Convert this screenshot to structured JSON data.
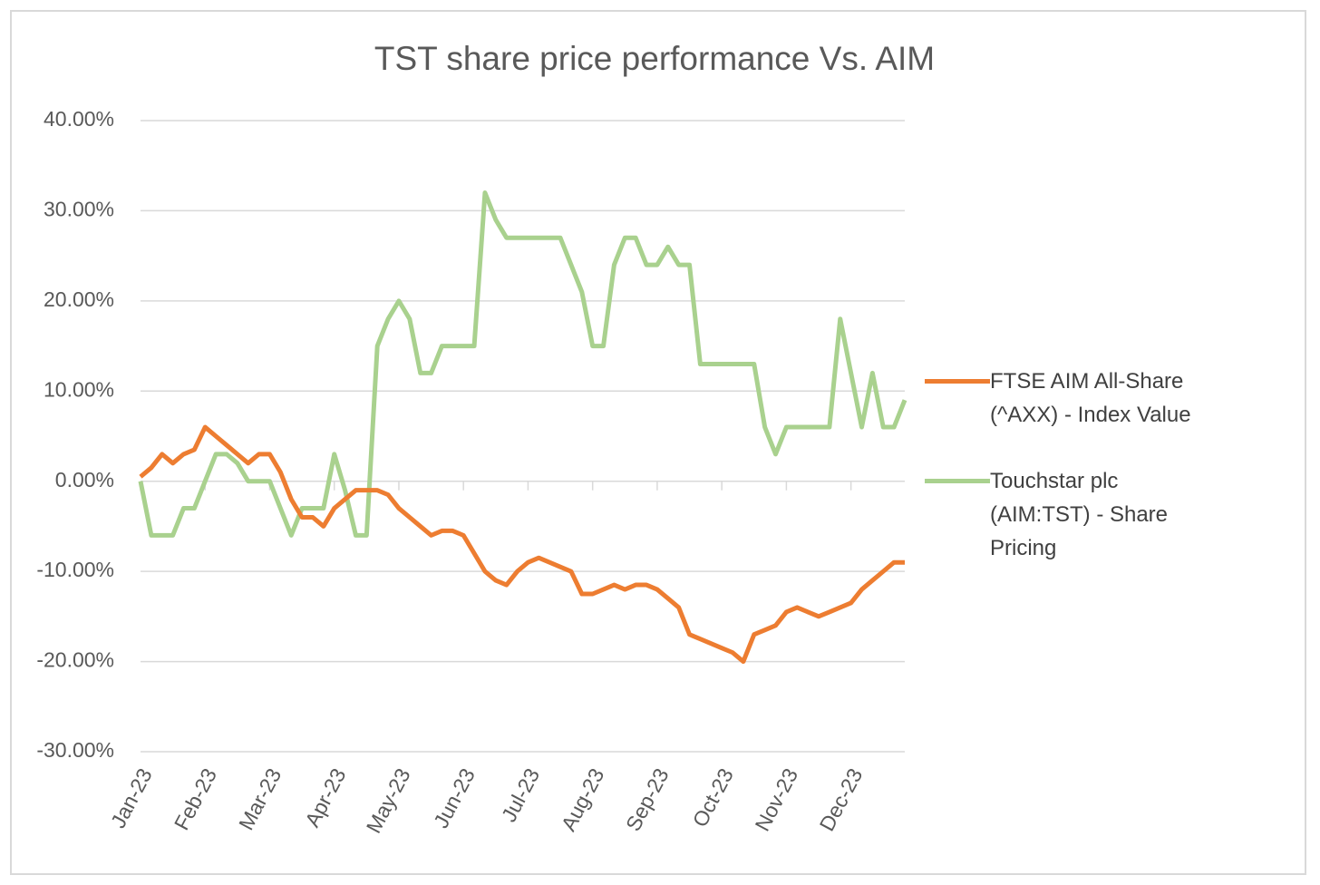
{
  "chart_data": {
    "type": "line",
    "title": "TST share price performance Vs. AIM",
    "categories": [
      "Jan-23",
      null,
      null,
      null,
      null,
      null,
      "Feb-23",
      null,
      null,
      null,
      null,
      null,
      "Mar-23",
      null,
      null,
      null,
      null,
      null,
      "Apr-23",
      null,
      null,
      null,
      null,
      null,
      "May-23",
      null,
      null,
      null,
      null,
      null,
      "Jun-23",
      null,
      null,
      null,
      null,
      null,
      "Jul-23",
      null,
      null,
      null,
      null,
      null,
      "Aug-23",
      null,
      null,
      null,
      null,
      null,
      "Sep-23",
      null,
      null,
      null,
      null,
      null,
      "Oct-23",
      null,
      null,
      null,
      null,
      null,
      "Nov-23",
      null,
      null,
      null,
      null,
      null,
      "Dec-23",
      null,
      null,
      null,
      null,
      null
    ],
    "series": [
      {
        "name": "FTSE AIM All-Share (^AXX) - Index Value",
        "color": "#ed7d31",
        "values": [
          0.5,
          1.5,
          3,
          2,
          3,
          3.5,
          6,
          5,
          4,
          3,
          2,
          3,
          3,
          1,
          -2,
          -4,
          -4,
          -5,
          -3,
          -2,
          -1,
          -1,
          -1,
          -1.5,
          -3,
          -4,
          -5,
          -6,
          -5.5,
          -5.5,
          -6,
          -8,
          -10,
          -11,
          -11.5,
          -10,
          -9,
          -8.5,
          -9,
          -9.5,
          -10,
          -12.5,
          -12.5,
          -12,
          -11.5,
          -12,
          -11.5,
          -11.5,
          -12,
          -13,
          -14,
          -17,
          -17.5,
          -18,
          -18.5,
          -19,
          -20,
          -17,
          -16.5,
          -16,
          -14.5,
          -14,
          -14.5,
          -15,
          -14.5,
          -14,
          -13.5,
          -12,
          -11,
          -10,
          -9,
          -9
        ]
      },
      {
        "name": "Touchstar plc (AIM:TST) - Share Pricing",
        "color": "#a9d18e",
        "values": [
          0,
          -6,
          -6,
          -6,
          -3,
          -3,
          0,
          3,
          3,
          2,
          0,
          0,
          0,
          -3,
          -6,
          -3,
          -3,
          -3,
          3,
          -1,
          -6,
          -6,
          15,
          18,
          20,
          18,
          12,
          12,
          15,
          15,
          15,
          15,
          32,
          29,
          27,
          27,
          27,
          27,
          27,
          27,
          24,
          21,
          15,
          15,
          24,
          27,
          27,
          24,
          24,
          26,
          24,
          24,
          13,
          13,
          13,
          13,
          13,
          13,
          6,
          3,
          6,
          6,
          6,
          6,
          6,
          18,
          12,
          6,
          12,
          6,
          6,
          9
        ]
      }
    ],
    "ylim": [
      -30,
      40
    ],
    "yticks": [
      {
        "value": -30,
        "label": "-30.00%"
      },
      {
        "value": -20,
        "label": "-20.00%"
      },
      {
        "value": -10,
        "label": "-10.00%"
      },
      {
        "value": 0,
        "label": "0.00%"
      },
      {
        "value": 10,
        "label": "10.00%"
      },
      {
        "value": 20,
        "label": "20.00%"
      },
      {
        "value": 30,
        "label": "30.00%"
      },
      {
        "value": 40,
        "label": "40.00%"
      }
    ],
    "grid": true,
    "legend": "right"
  }
}
